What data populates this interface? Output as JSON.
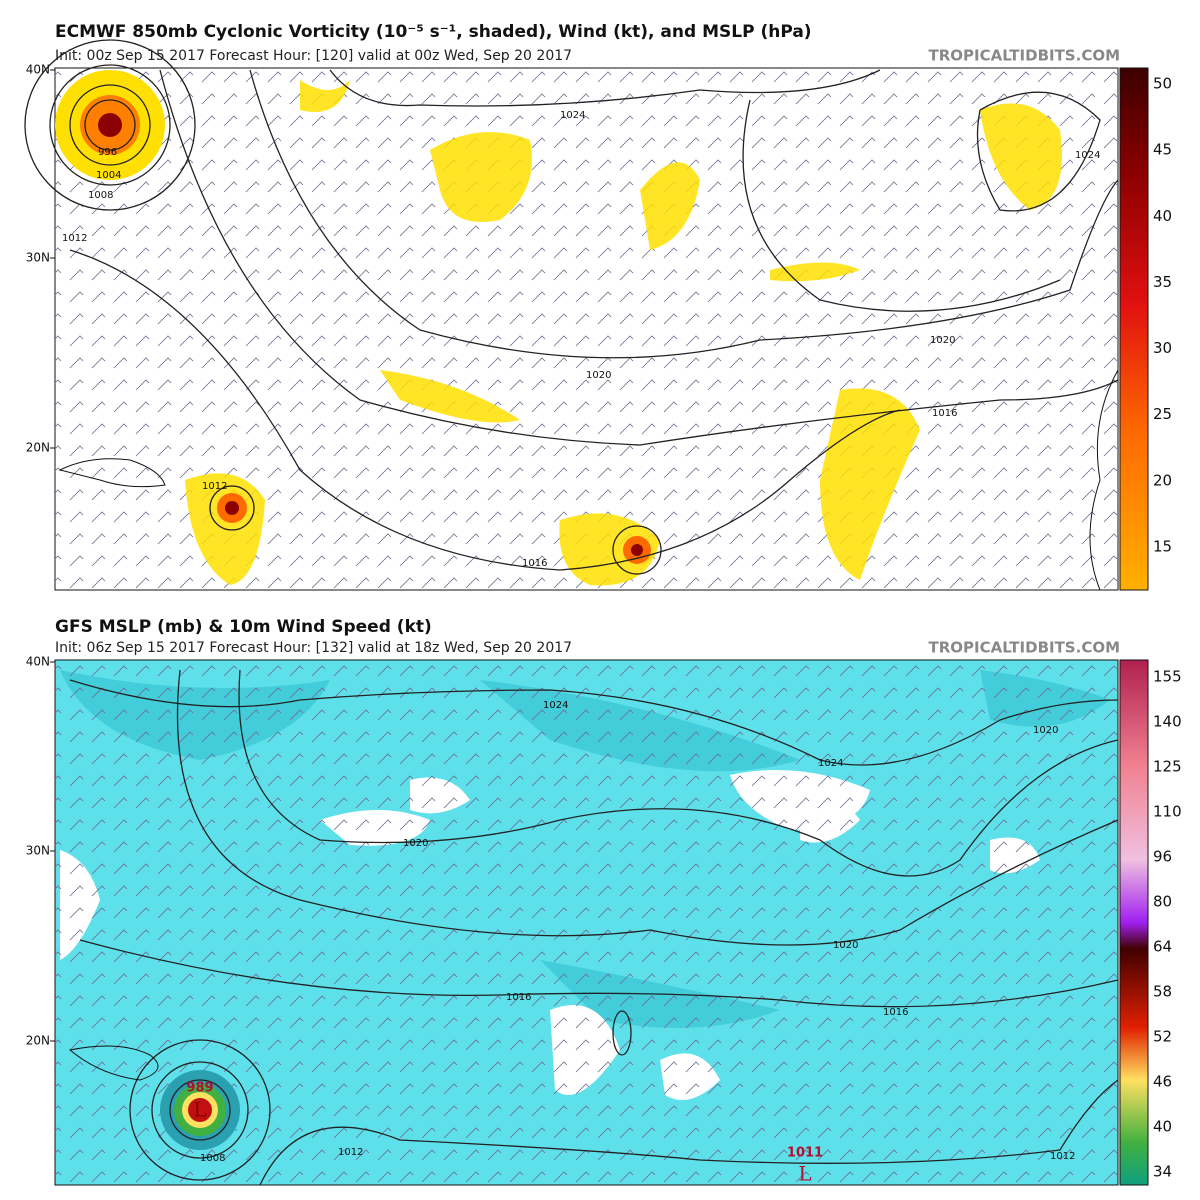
{
  "panels": [
    {
      "title": "ECMWF 850mb Cyclonic Vorticity (10⁻⁵ s⁻¹, shaded), Wind (kt), and MSLP (hPa)",
      "subtitle": "Init: 00z Sep 15 2017   Forecast Hour: [120]   valid at 00z Wed, Sep 20 2017",
      "source": "TROPICALTIDBITS.COM",
      "lat_labels": [
        "40N",
        "30N",
        "20N"
      ],
      "colorbar_labels": [
        "50",
        "45",
        "40",
        "35",
        "30",
        "25",
        "20",
        "15"
      ],
      "contour_labels": [
        "1024",
        "1024",
        "996",
        "1004",
        "1008",
        "1012",
        "1020",
        "1020",
        "1016",
        "1012",
        "1016"
      ]
    },
    {
      "title": "GFS MSLP (mb) & 10m Wind Speed (kt)",
      "subtitle": "Init: 06z Sep 15 2017   Forecast Hour: [132]   valid at 18z Wed, Sep 20 2017",
      "source": "TROPICALTIDBITS.COM",
      "lat_labels": [
        "40N",
        "30N",
        "20N"
      ],
      "colorbar_labels": [
        "155",
        "140",
        "125",
        "110",
        "96",
        "80",
        "64",
        "58",
        "52",
        "46",
        "40",
        "34"
      ],
      "contour_labels": [
        "1024",
        "1020",
        "1024",
        "1020",
        "1020",
        "1016",
        "1016",
        "1012",
        "1008",
        "1012",
        "1011",
        "989"
      ],
      "low_markers": [
        "L",
        "L"
      ]
    }
  ]
}
